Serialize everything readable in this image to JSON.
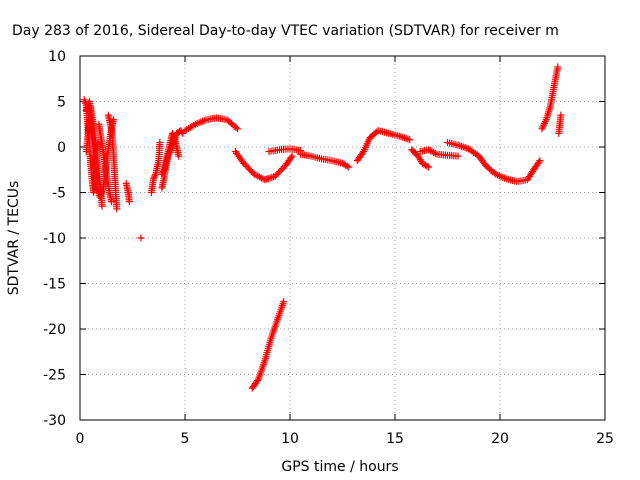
{
  "chart_data": {
    "type": "scatter",
    "title": "Day 283 of 2016, Sidereal Day-to-day VTEC variation (SDTVAR) for receiver m",
    "xlabel": "GPS time / hours",
    "ylabel": "SDTVAR / TECUs",
    "xlim": [
      0,
      25
    ],
    "ylim": [
      -30,
      10
    ],
    "xticks": [
      0,
      5,
      10,
      15,
      20,
      25
    ],
    "yticks": [
      -30,
      -25,
      -20,
      -15,
      -10,
      -5,
      0,
      5,
      10
    ],
    "grid": true,
    "marker": "plus",
    "color": "#ff0000",
    "series": [
      {
        "name": "SDTVAR",
        "segments": [
          [
            [
              0.2,
              5.2
            ],
            [
              0.3,
              4.6
            ],
            [
              0.35,
              3.0
            ],
            [
              0.4,
              1.5
            ],
            [
              0.45,
              0.0
            ],
            [
              0.5,
              -1.5
            ],
            [
              0.55,
              -3.0
            ],
            [
              0.6,
              -4.2
            ],
            [
              0.65,
              -5.0
            ],
            [
              0.7,
              -4.0
            ],
            [
              0.75,
              -2.5
            ],
            [
              0.8,
              -1.0
            ],
            [
              0.85,
              0.5
            ]
          ],
          [
            [
              0.3,
              -0.5
            ],
            [
              0.4,
              1.8
            ],
            [
              0.5,
              4.5
            ],
            [
              0.6,
              3.0
            ],
            [
              0.7,
              1.0
            ],
            [
              0.8,
              -1.0
            ],
            [
              0.9,
              -3.0
            ],
            [
              1.0,
              -5.0
            ],
            [
              1.05,
              -6.5
            ]
          ],
          [
            [
              0.3,
              4.0
            ],
            [
              0.45,
              5.0
            ],
            [
              0.55,
              2.0
            ],
            [
              0.65,
              0.0
            ],
            [
              0.75,
              -2.5
            ],
            [
              0.85,
              -4.5
            ],
            [
              0.95,
              -5.5
            ],
            [
              1.1,
              -4.5
            ],
            [
              1.2,
              -3.0
            ],
            [
              1.3,
              -1.0
            ],
            [
              1.4,
              0.5
            ],
            [
              1.5,
              2.0
            ],
            [
              1.6,
              3.0
            ]
          ],
          [
            [
              0.9,
              2.5
            ],
            [
              1.0,
              1.0
            ],
            [
              1.1,
              -0.5
            ],
            [
              1.2,
              -2.0
            ],
            [
              1.3,
              -3.5
            ],
            [
              1.4,
              -5.0
            ],
            [
              1.5,
              -6.0
            ]
          ],
          [
            [
              1.35,
              3.5
            ],
            [
              1.45,
              2.5
            ],
            [
              1.55,
              1.0
            ],
            [
              1.6,
              -1.0
            ],
            [
              1.65,
              -3.0
            ],
            [
              1.7,
              -5.0
            ],
            [
              1.75,
              -6.8
            ]
          ],
          [
            [
              2.2,
              -4.0
            ],
            [
              2.3,
              -5.0
            ],
            [
              2.35,
              -6.0
            ]
          ],
          [
            [
              2.9,
              -10.0
            ]
          ],
          [
            [
              3.4,
              -5.0
            ],
            [
              3.5,
              -3.5
            ],
            [
              3.6,
              -3.0
            ],
            [
              3.75,
              -1.5
            ],
            [
              3.8,
              0.5
            ]
          ],
          [
            [
              3.9,
              -3.0
            ],
            [
              4.0,
              -2.5
            ],
            [
              4.1,
              -1.5
            ],
            [
              4.2,
              -0.5
            ],
            [
              4.3,
              0.5
            ],
            [
              4.4,
              1.5
            ],
            [
              4.5,
              1.0
            ],
            [
              4.6,
              0.0
            ],
            [
              4.7,
              -1.0
            ]
          ],
          [
            [
              3.9,
              -4.5
            ],
            [
              4.0,
              -3.5
            ],
            [
              4.1,
              -2.0
            ],
            [
              4.2,
              -1.0
            ],
            [
              4.4,
              0.0
            ],
            [
              4.6,
              1.5
            ],
            [
              4.8,
              1.8
            ],
            [
              4.9,
              1.5
            ]
          ],
          [
            [
              5.0,
              1.8
            ],
            [
              5.5,
              2.5
            ],
            [
              6.0,
              3.0
            ],
            [
              6.5,
              3.2
            ],
            [
              7.0,
              3.0
            ],
            [
              7.5,
              2.0
            ]
          ],
          [
            [
              7.4,
              -0.5
            ],
            [
              7.8,
              -1.8
            ],
            [
              8.3,
              -3.0
            ],
            [
              8.8,
              -3.6
            ],
            [
              9.3,
              -3.2
            ],
            [
              9.8,
              -2.0
            ],
            [
              10.1,
              -1.0
            ]
          ],
          [
            [
              9.0,
              -0.5
            ],
            [
              9.5,
              -0.3
            ],
            [
              10.0,
              -0.2
            ],
            [
              10.5,
              -0.4
            ]
          ],
          [
            [
              10.5,
              -0.8
            ],
            [
              11.0,
              -1.0
            ],
            [
              11.5,
              -1.3
            ],
            [
              12.0,
              -1.5
            ],
            [
              12.5,
              -1.8
            ],
            [
              12.8,
              -2.2
            ]
          ],
          [
            [
              8.2,
              -26.5
            ],
            [
              8.5,
              -25.5
            ],
            [
              8.8,
              -23.5
            ],
            [
              9.1,
              -21.0
            ],
            [
              9.4,
              -19.0
            ],
            [
              9.7,
              -17.0
            ]
          ],
          [
            [
              13.2,
              -1.5
            ],
            [
              13.5,
              -0.5
            ],
            [
              13.8,
              1.0
            ],
            [
              14.2,
              1.8
            ],
            [
              14.7,
              1.5
            ],
            [
              15.2,
              1.2
            ],
            [
              15.7,
              0.8
            ]
          ],
          [
            [
              15.8,
              -0.3
            ],
            [
              16.1,
              -1.0
            ],
            [
              16.3,
              -1.8
            ],
            [
              16.6,
              -2.2
            ]
          ],
          [
            [
              16.2,
              -0.5
            ],
            [
              16.6,
              -0.3
            ],
            [
              17.0,
              -0.8
            ],
            [
              17.5,
              -0.9
            ],
            [
              18.0,
              -1.0
            ]
          ],
          [
            [
              17.5,
              0.5
            ],
            [
              18.0,
              0.2
            ],
            [
              18.5,
              -0.2
            ],
            [
              19.0,
              -1.0
            ],
            [
              19.3,
              -2.0
            ],
            [
              19.8,
              -3.0
            ],
            [
              20.3,
              -3.5
            ],
            [
              20.8,
              -3.8
            ],
            [
              21.3,
              -3.6
            ],
            [
              21.6,
              -2.5
            ],
            [
              21.9,
              -1.5
            ]
          ],
          [
            [
              22.0,
              2.0
            ],
            [
              22.2,
              3.0
            ],
            [
              22.4,
              4.5
            ],
            [
              22.6,
              7.0
            ],
            [
              22.75,
              8.8
            ]
          ],
          [
            [
              22.8,
              1.5
            ],
            [
              22.9,
              3.5
            ]
          ]
        ]
      }
    ]
  }
}
